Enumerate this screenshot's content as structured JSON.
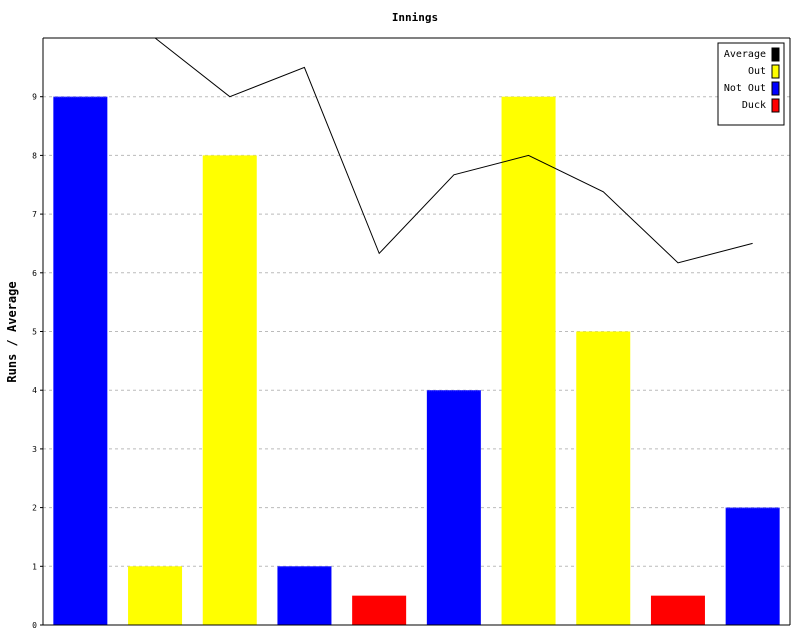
{
  "chart_data": {
    "type": "bar",
    "title": "Innings",
    "ylabel": "Runs / Average",
    "xlabel": "",
    "ylim": [
      0,
      10
    ],
    "yticks": [
      0,
      1,
      2,
      3,
      4,
      5,
      6,
      7,
      8,
      9
    ],
    "grid": true,
    "legend_position": "top-right",
    "bars": [
      {
        "value": 9,
        "series": "Not Out"
      },
      {
        "value": 1,
        "series": "Out"
      },
      {
        "value": 8,
        "series": "Out"
      },
      {
        "value": 1,
        "series": "Not Out"
      },
      {
        "value": 0.5,
        "series": "Duck"
      },
      {
        "value": 4,
        "series": "Not Out"
      },
      {
        "value": 9,
        "series": "Out"
      },
      {
        "value": 5,
        "series": "Out"
      },
      {
        "value": 0.5,
        "series": "Duck"
      },
      {
        "value": 2,
        "series": "Not Out"
      }
    ],
    "line": {
      "name": "Average",
      "values": [
        null,
        10,
        9,
        9.5,
        6.33,
        7.67,
        8,
        7.38,
        6.17,
        6.5
      ]
    },
    "legend": [
      {
        "name": "Average",
        "color": "#000000"
      },
      {
        "name": "Out",
        "color": "#ffff00"
      },
      {
        "name": "Not Out",
        "color": "#0000ff"
      },
      {
        "name": "Duck",
        "color": "#ff0000"
      }
    ],
    "colors": {
      "Not Out": "#0000ff",
      "Out": "#ffff00",
      "Duck": "#ff0000",
      "Average": "#000000"
    }
  }
}
